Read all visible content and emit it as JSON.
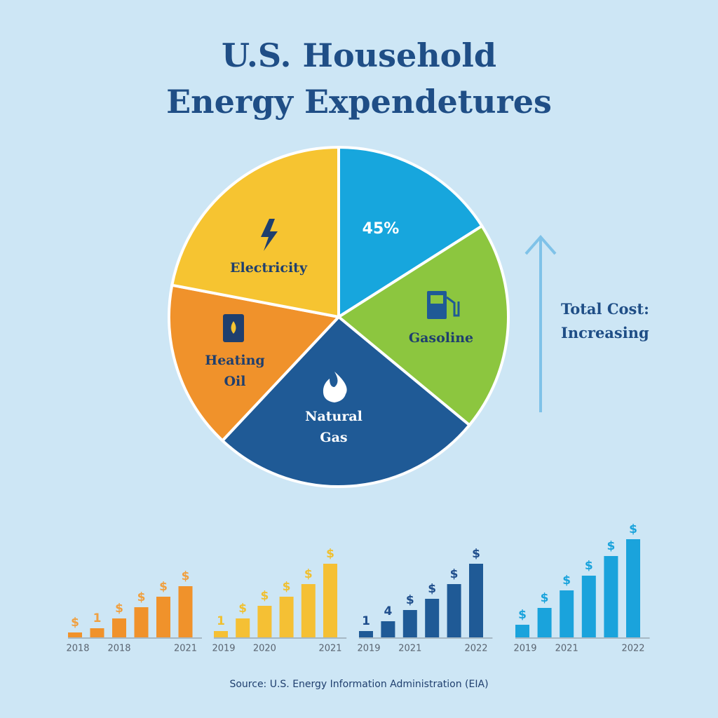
{
  "chart_data": [
    {
      "type": "pie",
      "title": [
        "U.S. Household",
        "Energy Expendetures"
      ],
      "categories": [
        null,
        "Gasoline",
        "Natural Gas",
        "Heating Oil",
        "Electricity"
      ],
      "values": [
        16,
        20,
        26,
        16,
        22
      ],
      "colors": [
        "#17a6dd",
        "#8cc63f",
        "#1f5a96",
        "#f0922b",
        "#f6c431"
      ],
      "slice_annotation": "45%",
      "side_annotation": [
        "Total Cost:",
        "Increasing"
      ],
      "source": "Source: U.S. Energy Information Administration (EIA)"
    },
    {
      "type": "bar",
      "color": "#f0922b",
      "label_color": "#f0a040",
      "categories": [
        "2018",
        null,
        "2018",
        null,
        null,
        "2021"
      ],
      "values": [
        7,
        13,
        27,
        43,
        58,
        73
      ],
      "bar_labels": [
        "$",
        "1",
        "$",
        "$",
        "$",
        "$"
      ],
      "ylim": [
        0,
        150
      ]
    },
    {
      "type": "bar",
      "color": "#f5c034",
      "label_color": "#f0c030",
      "categories": [
        "2019",
        null,
        "2020",
        null,
        null,
        "2021"
      ],
      "values": [
        9,
        27,
        45,
        58,
        76,
        105
      ],
      "bar_labels": [
        "1",
        "$",
        "$",
        "$",
        "$",
        "$"
      ],
      "ylim": [
        0,
        150
      ]
    },
    {
      "type": "bar",
      "color": "#1f5a96",
      "label_color": "#1f4e8c",
      "categories": [
        "2019",
        null,
        "2021",
        null,
        null,
        "2022"
      ],
      "values": [
        9,
        23,
        39,
        55,
        76,
        105
      ],
      "bar_labels": [
        "1",
        "4",
        "$",
        "$",
        "$",
        "$"
      ],
      "ylim": [
        0,
        150
      ]
    },
    {
      "type": "bar",
      "color": "#1aa3dc",
      "label_color": "#1aa3dc",
      "categories": [
        "2019",
        null,
        "2021",
        null,
        null,
        "2022"
      ],
      "values": [
        18,
        42,
        67,
        88,
        116,
        140
      ],
      "bar_labels": [
        "$",
        "$",
        "$",
        "$",
        "$",
        "$"
      ],
      "ylim": [
        0,
        150
      ]
    }
  ]
}
